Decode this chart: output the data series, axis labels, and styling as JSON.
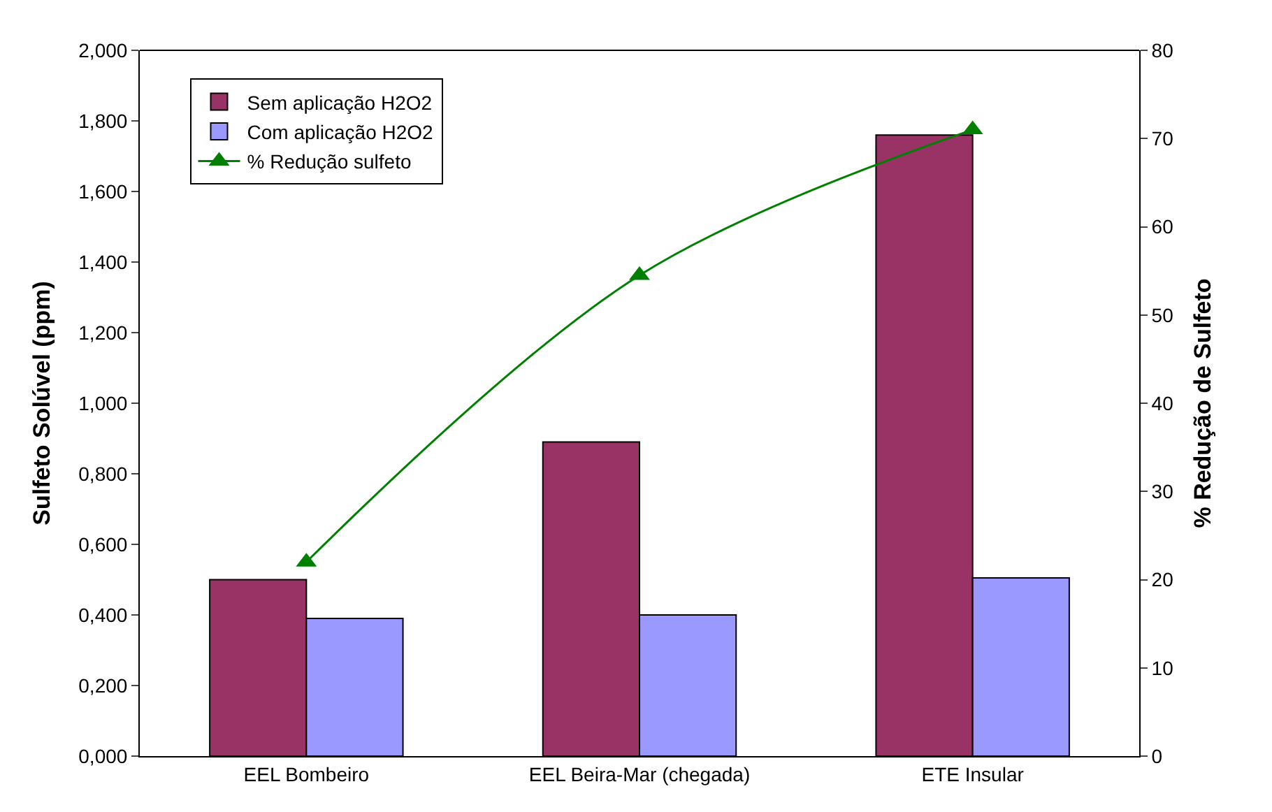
{
  "chart_data": {
    "type": "bar",
    "categories": [
      "EEL Bombeiro",
      "EEL Beira-Mar (chegada)",
      "ETE Insular"
    ],
    "series": [
      {
        "name": "Sem aplicação H2O2",
        "color": "#993366",
        "values": [
          0.5,
          0.89,
          1.76
        ]
      },
      {
        "name": "Com aplicação H2O2",
        "color": "#9999ff",
        "values": [
          0.39,
          0.4,
          0.505
        ]
      },
      {
        "name": "% Redução sulfeto",
        "type": "line",
        "axis": "y2",
        "color": "#008000",
        "marker": "triangle",
        "values": [
          22,
          54.5,
          71
        ]
      }
    ],
    "ylabel": "Sulfeto Solúvel (ppm)",
    "y2label": "% Redução de Sulfeto",
    "ylim": [
      0,
      2
    ],
    "yticks": [
      {
        "value": 0,
        "label": "0,000"
      },
      {
        "value": 0.2,
        "label": "0,200"
      },
      {
        "value": 0.4,
        "label": "0,400"
      },
      {
        "value": 0.6,
        "label": "0,600"
      },
      {
        "value": 0.8,
        "label": "0,800"
      },
      {
        "value": 1.0,
        "label": "1,000"
      },
      {
        "value": 1.2,
        "label": "1,200"
      },
      {
        "value": 1.4,
        "label": "1,400"
      },
      {
        "value": 1.6,
        "label": "1,600"
      },
      {
        "value": 1.8,
        "label": "1,800"
      },
      {
        "value": 2.0,
        "label": "2,000"
      }
    ],
    "y2lim": [
      0,
      80
    ],
    "y2ticks": [
      0,
      10,
      20,
      30,
      40,
      50,
      60,
      70,
      80
    ],
    "legend": "top left"
  }
}
